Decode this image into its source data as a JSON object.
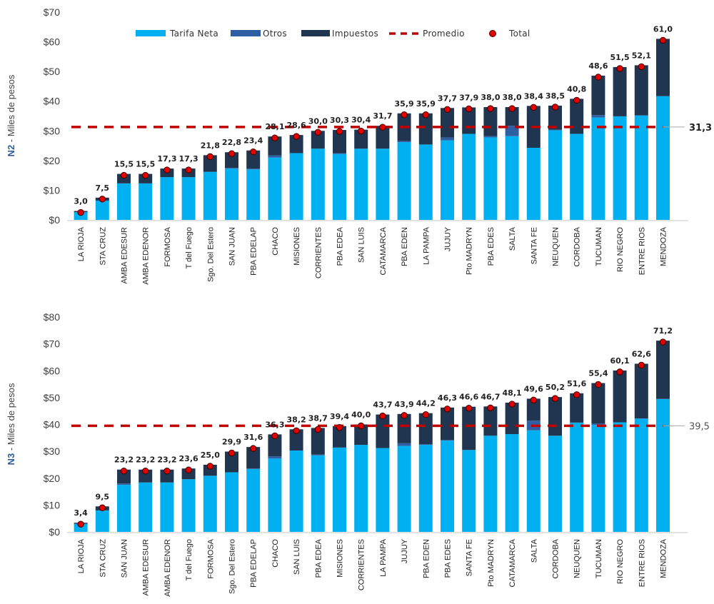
{
  "colors": {
    "tarifa": "#00b0f0",
    "otros": "#2e5fa3",
    "impuestos": "#1f3550",
    "promedio": "#c00000",
    "total_dot": "#e00000",
    "axis": "#d9d9d9"
  },
  "legend": {
    "tarifa": "Tarifa Neta",
    "otros": "Otros",
    "impuestos": "Impuestos",
    "promedio": "Promedio",
    "total": "Total"
  },
  "chart_data": [
    {
      "type": "bar",
      "stacked": true,
      "title": "",
      "ylabel_bold": "N2",
      "ylabel_rest": " - Miles de pesos",
      "ylim": [
        0,
        70
      ],
      "yticks": [
        0,
        10,
        20,
        30,
        40,
        50,
        60,
        70
      ],
      "ytick_labels": [
        "$0",
        "$10",
        "$20",
        "$30",
        "$40",
        "$50",
        "$60",
        "$70"
      ],
      "legend_position": "top",
      "grid": false,
      "average": 31.3,
      "average_label": "31,3",
      "categories": [
        "LA RIOJA",
        "STA CRUZ",
        "AMBA EDESUR",
        "AMBA EDENOR",
        "FORMOSA",
        "T del Fuego",
        "Sgo. Del Estero",
        "SAN JUAN",
        "PBA EDELAP",
        "CHACO",
        "MISIONES",
        "CORRIENTES",
        "PBA EDEA",
        "SAN LUIS",
        "CATAMARCA",
        "PBA EDEN",
        "LA PAMPA",
        "JUJUY",
        "Pto MADRYN",
        "PBA EDES",
        "SALTA",
        "SANTA FE",
        "NEUQUEN",
        "CORDOBA",
        "TUCUMAN",
        "RIO NEGRO",
        "ENTRE RIOS",
        "MENDOZA"
      ],
      "series": [
        {
          "name": "Tarifa Neta",
          "key": "tarifa",
          "values": [
            2.6,
            6.5,
            12.3,
            12.3,
            14.4,
            14.4,
            16.2,
            17.3,
            17.0,
            21.0,
            22.5,
            24.0,
            22.2,
            24.0,
            24.0,
            26.2,
            25.4,
            26.8,
            29.0,
            27.8,
            28.2,
            24.3,
            30.2,
            29.0,
            34.5,
            34.9,
            35.2,
            41.7
          ]
        },
        {
          "name": "Otros",
          "key": "otros",
          "values": [
            0,
            0,
            0,
            0,
            0,
            0,
            0,
            0.2,
            0.3,
            0.7,
            0,
            0,
            0.3,
            0,
            0,
            0.4,
            0,
            1.0,
            0,
            0.4,
            3.5,
            0,
            0.2,
            0,
            0.8,
            0,
            0,
            0
          ]
        },
        {
          "name": "Impuestos",
          "key": "impuestos",
          "values": [
            0.4,
            1.0,
            3.2,
            3.2,
            2.9,
            2.9,
            5.6,
            5.3,
            6.1,
            6.4,
            6.1,
            6.0,
            7.8,
            6.4,
            7.7,
            9.3,
            10.5,
            9.9,
            8.9,
            9.8,
            6.3,
            14.1,
            8.1,
            11.8,
            13.3,
            16.6,
            16.9,
            19.3
          ]
        }
      ],
      "totals": [
        3.0,
        7.5,
        15.5,
        15.5,
        17.3,
        17.3,
        21.8,
        22.8,
        23.4,
        28.1,
        28.6,
        30.0,
        30.3,
        30.4,
        31.7,
        35.9,
        35.9,
        37.7,
        37.9,
        38.0,
        38.0,
        38.4,
        38.5,
        40.8,
        48.6,
        51.5,
        52.1,
        61.0
      ],
      "total_labels": [
        "3,0",
        "7,5",
        "15,5",
        "15,5",
        "17,3",
        "17,3",
        "21,8",
        "22,8",
        "23,4",
        "28,1",
        "28,6",
        "30,0",
        "30,3",
        "30,4",
        "31,7",
        "35,9",
        "35,9",
        "37,7",
        "37,9",
        "38,0",
        "38,0",
        "38,4",
        "38,5",
        "40,8",
        "48,6",
        "51,5",
        "52,1",
        "61,0"
      ]
    },
    {
      "type": "bar",
      "stacked": true,
      "title": "",
      "ylabel_bold": "N3",
      "ylabel_rest": " - Miles de pesos",
      "ylim": [
        0,
        80
      ],
      "yticks": [
        0,
        10,
        20,
        30,
        40,
        50,
        60,
        70,
        80
      ],
      "ytick_labels": [
        "$0",
        "$10",
        "$20",
        "$30",
        "$40",
        "$50",
        "$60",
        "$70",
        "$80"
      ],
      "legend_position": "none",
      "grid": false,
      "average": 39.5,
      "average_label": "39,5",
      "categories": [
        "LA RIOJA",
        "STA CRUZ",
        "SAN JUAN",
        "AMBA EDESUR",
        "AMBA EDENOR",
        "T del Fuego",
        "FORMOSA",
        "Sgo. Del Estero",
        "PBA EDELAP",
        "CHACO",
        "SAN LUIS",
        "PBA EDEA",
        "MISIONES",
        "CORRIENTES",
        "LA PAMPA",
        "JUJUY",
        "PBA EDEN",
        "PBA EDES",
        "SANTA FE",
        "Pto MADRYN",
        "CATAMARCA",
        "SALTA",
        "CORDOBA",
        "NEUQUEN",
        "TUCUMAN",
        "RIO NEGRO",
        "ENTRE RIOS",
        "MENDOZA"
      ],
      "series": [
        {
          "name": "Tarifa Neta",
          "key": "tarifa",
          "values": [
            3.0,
            8.0,
            17.5,
            18.4,
            18.4,
            19.6,
            20.9,
            22.2,
            23.4,
            27.3,
            30.3,
            28.5,
            31.4,
            32.4,
            31.2,
            32.0,
            32.4,
            34.0,
            30.5,
            35.8,
            36.4,
            37.8,
            35.8,
            40.7,
            39.8,
            40.8,
            42.2,
            49.5
          ]
        },
        {
          "name": "Otros",
          "key": "otros",
          "values": [
            0,
            0,
            0.5,
            0,
            0,
            0,
            0,
            0,
            0.2,
            0.8,
            0,
            0.3,
            0,
            0,
            0,
            1.0,
            0.2,
            0.2,
            0,
            0,
            0,
            3.6,
            0,
            0,
            0.6,
            0,
            0,
            0
          ]
        },
        {
          "name": "Impuestos",
          "key": "impuestos",
          "values": [
            0.4,
            1.5,
            5.2,
            4.8,
            4.8,
            4.0,
            4.1,
            7.7,
            8.0,
            8.2,
            7.9,
            9.9,
            8.0,
            7.6,
            12.5,
            10.9,
            11.6,
            12.1,
            16.1,
            10.9,
            11.7,
            8.2,
            14.4,
            10.9,
            15.0,
            19.3,
            20.4,
            21.7
          ]
        }
      ],
      "totals": [
        3.4,
        9.5,
        23.2,
        23.2,
        23.2,
        23.6,
        25.0,
        29.9,
        31.6,
        36.3,
        38.2,
        38.7,
        39.4,
        40.0,
        43.7,
        43.9,
        44.2,
        46.3,
        46.6,
        46.7,
        48.1,
        49.6,
        50.2,
        51.6,
        55.4,
        60.1,
        62.6,
        71.2
      ],
      "total_labels": [
        "3,4",
        "9,5",
        "23,2",
        "23,2",
        "23,2",
        "23,6",
        "25,0",
        "29,9",
        "31,6",
        "36,3",
        "38,2",
        "38,7",
        "39,4",
        "40,0",
        "43,7",
        "43,9",
        "44,2",
        "46,3",
        "46,6",
        "46,7",
        "48,1",
        "49,6",
        "50,2",
        "51,6",
        "55,4",
        "60,1",
        "62,6",
        "71,2"
      ]
    }
  ]
}
